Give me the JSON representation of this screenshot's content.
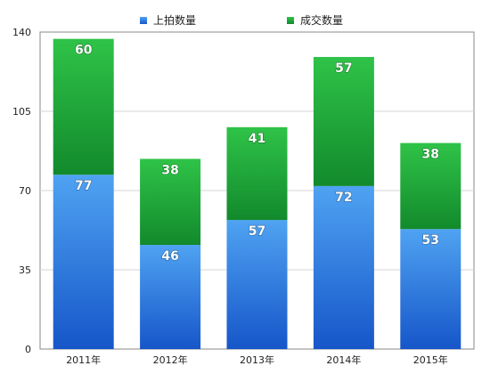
{
  "chart_data": {
    "type": "bar",
    "stacked": true,
    "categories": [
      "2011年",
      "2012年",
      "2013年",
      "2014年",
      "2015年"
    ],
    "series": [
      {
        "name": "上拍数量",
        "values": [
          77,
          46,
          57,
          72,
          53
        ],
        "color": "#2a7fe0"
      },
      {
        "name": "成交数量",
        "values": [
          60,
          38,
          41,
          57,
          38
        ],
        "color": "#1fa534"
      }
    ],
    "yticks": [
      "0",
      "35",
      "70",
      "105",
      "140"
    ],
    "ylim": [
      0,
      140
    ],
    "grid": true,
    "legend": "top-center"
  }
}
